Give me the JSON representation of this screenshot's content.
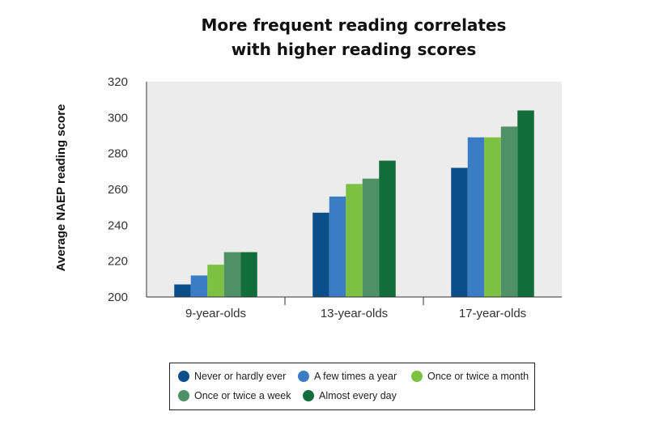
{
  "chart_data": {
    "type": "bar",
    "title_lines": [
      "More frequent reading correlates",
      "with higher reading scores"
    ],
    "ylabel": "Average NAEP reading score",
    "xlabel": "",
    "ylim": [
      200,
      320
    ],
    "yticks": [
      200,
      220,
      240,
      260,
      280,
      300,
      320
    ],
    "grid": false,
    "categories": [
      "9-year-olds",
      "13-year-olds",
      "17-year-olds"
    ],
    "series": [
      {
        "name": "Never or hardly ever",
        "color": "#0b4f8a",
        "values": [
          207,
          247,
          272
        ]
      },
      {
        "name": "A few times a year",
        "color": "#3a7dc4",
        "values": [
          212,
          256,
          289
        ]
      },
      {
        "name": "Once or twice a month",
        "color": "#7cc142",
        "values": [
          218,
          263,
          289
        ]
      },
      {
        "name": "Once or twice a week",
        "color": "#4e9166",
        "values": [
          225,
          266,
          295
        ]
      },
      {
        "name": "Almost every day",
        "color": "#116d3a",
        "values": [
          225,
          276,
          304
        ]
      }
    ],
    "legend_position": "bottom",
    "plot_background": "#ececec"
  }
}
